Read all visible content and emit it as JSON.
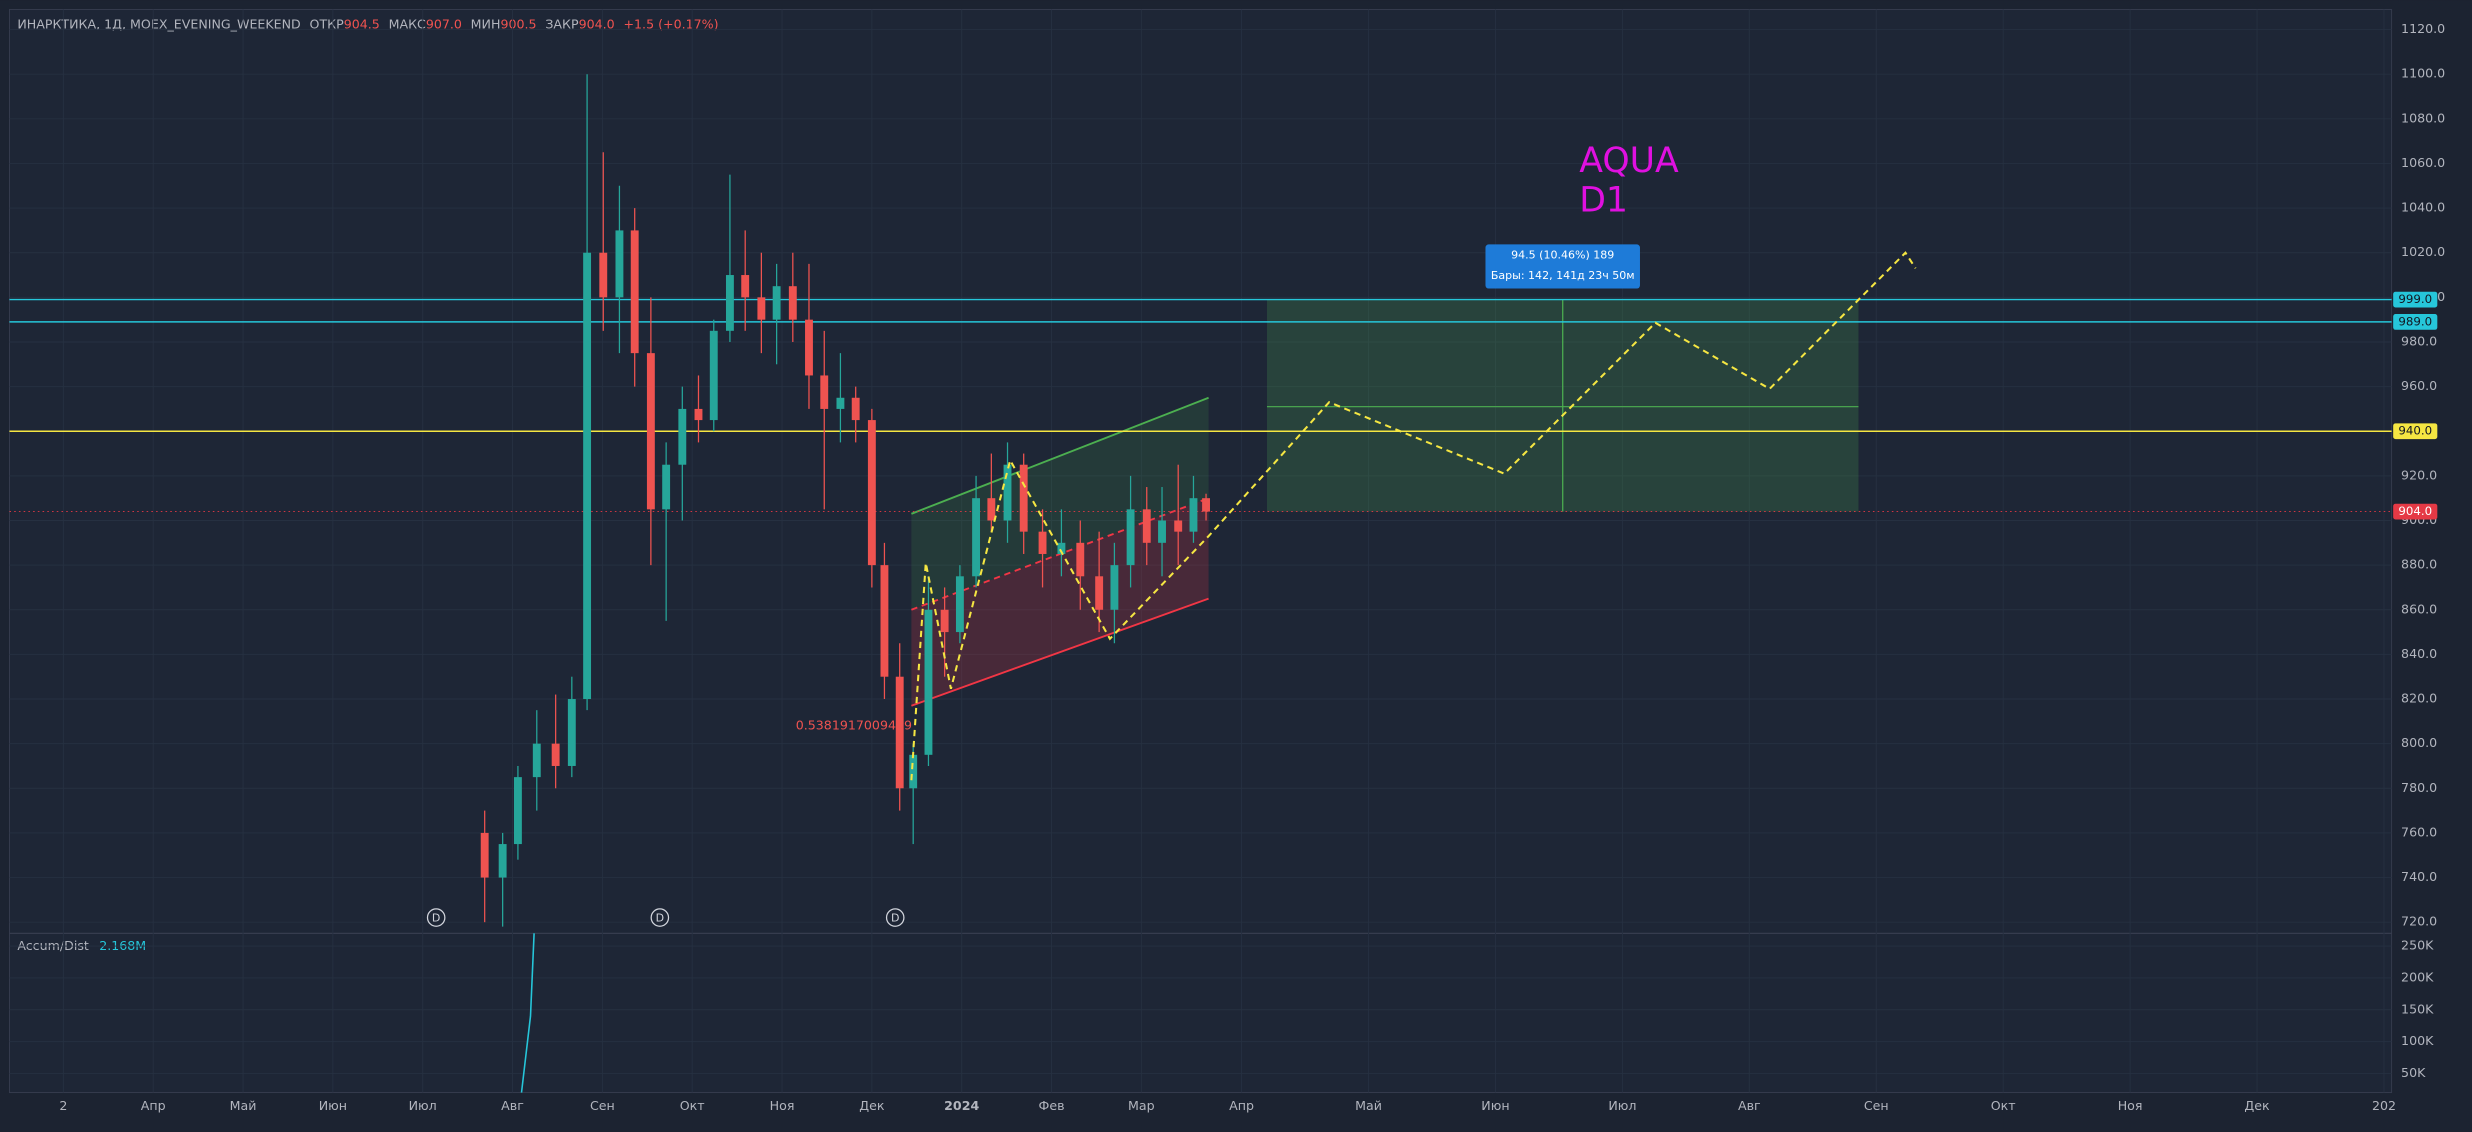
{
  "chart_data": {
    "type": "candlestick",
    "header": {
      "symbol": "ИНАРКТИКА, 1Д, MOEX_EVENING_WEEKEND",
      "open_label": "ОТКР",
      "open": "904.5",
      "high_label": "МАКС",
      "high": "907.0",
      "low_label": "МИН",
      "low": "900.5",
      "close_label": "ЗАКР",
      "close": "904.0",
      "change": "+1.5 (+0.17%)"
    },
    "xlim": [
      -0.6,
      22.06
    ],
    "xticks": [
      {
        "value": 0,
        "label": "2"
      },
      {
        "value": 1,
        "label": "Апр"
      },
      {
        "value": 2,
        "label": "Май"
      },
      {
        "value": 3,
        "label": "Июн"
      },
      {
        "value": 4,
        "label": "Июл"
      },
      {
        "value": 5,
        "label": "Авг"
      },
      {
        "value": 6,
        "label": "Сен"
      },
      {
        "value": 7,
        "label": "Окт"
      },
      {
        "value": 8,
        "label": "Ноя"
      },
      {
        "value": 9,
        "label": "Дек"
      },
      {
        "value": 10,
        "label": "2024"
      },
      {
        "value": 11,
        "label": "Фев"
      },
      {
        "value": 12,
        "label": "Мар"
      },
      {
        "value": 13,
        "label": "Апр"
      },
      {
        "value": 14,
        "label": "Май"
      },
      {
        "value": 15,
        "label": "Июн"
      },
      {
        "value": 16,
        "label": "Июл"
      },
      {
        "value": 17,
        "label": "Авг"
      },
      {
        "value": 18,
        "label": "Сен"
      },
      {
        "value": 19,
        "label": "Окт"
      },
      {
        "value": 20,
        "label": "Ноя"
      },
      {
        "value": 21,
        "label": "Дек"
      },
      {
        "value": 22,
        "label": "202"
      }
    ],
    "ylim": [
      715,
      1129
    ],
    "yticks": [
      {
        "value": 720,
        "label": "720.0"
      },
      {
        "value": 740,
        "label": "740.0"
      },
      {
        "value": 760,
        "label": "760.0"
      },
      {
        "value": 780,
        "label": "780.0"
      },
      {
        "value": 800,
        "label": "800.0"
      },
      {
        "value": 820,
        "label": "820.0"
      },
      {
        "value": 840,
        "label": "840.0"
      },
      {
        "value": 860,
        "label": "860.0"
      },
      {
        "value": 880,
        "label": "880.0"
      },
      {
        "value": 900,
        "label": "900.0"
      },
      {
        "value": 920,
        "label": "920.0"
      },
      {
        "value": 940,
        "label": "940.0"
      },
      {
        "value": 960,
        "label": "960.0"
      },
      {
        "value": 980,
        "label": "980.0"
      },
      {
        "value": 1000,
        "label": "1000.0"
      },
      {
        "value": 1020,
        "label": "1020.0"
      },
      {
        "value": 1040,
        "label": "1040.0"
      },
      {
        "value": 1060,
        "label": "1060.0"
      },
      {
        "value": 1080,
        "label": "1080.0"
      },
      {
        "value": 1100,
        "label": "1100.0"
      },
      {
        "value": 1120,
        "label": "1120.0"
      }
    ],
    "grid": true,
    "candles": {
      "up_color": "#26a69a",
      "down_color": "#ef5350",
      "x": [
        4.69,
        4.89,
        5.06,
        5.27,
        5.48,
        5.66,
        5.83,
        6.01,
        6.19,
        6.36,
        6.54,
        6.71,
        6.89,
        7.07,
        7.24,
        7.42,
        7.59,
        7.77,
        7.94,
        8.12,
        8.3,
        8.47,
        8.65,
        8.82,
        9.0,
        9.14,
        9.31,
        9.46,
        9.63,
        9.81,
        9.98,
        10.16,
        10.33,
        10.51,
        10.69,
        10.9,
        11.11,
        11.32,
        11.53,
        11.7,
        11.88,
        12.06,
        12.23,
        12.41,
        12.58,
        12.72
      ],
      "open": [
        760,
        740,
        755,
        785,
        800,
        790,
        820,
        1020,
        1000,
        1030,
        975,
        905,
        925,
        950,
        945,
        985,
        1010,
        1000,
        990,
        1005,
        990,
        965,
        950,
        955,
        945,
        880,
        830,
        780,
        795,
        860,
        850,
        875,
        910,
        900,
        925,
        895,
        885,
        890,
        875,
        860,
        880,
        905,
        890,
        900,
        895,
        910
      ],
      "high": [
        770,
        760,
        790,
        815,
        822,
        830,
        1100,
        1065,
        1050,
        1040,
        1000,
        935,
        960,
        965,
        990,
        1055,
        1030,
        1020,
        1015,
        1020,
        1015,
        985,
        975,
        960,
        950,
        890,
        845,
        800,
        875,
        870,
        880,
        920,
        930,
        935,
        930,
        905,
        905,
        900,
        895,
        890,
        920,
        915,
        915,
        925,
        920,
        912
      ],
      "low": [
        720,
        718,
        748,
        770,
        780,
        785,
        815,
        985,
        975,
        960,
        880,
        855,
        900,
        935,
        940,
        980,
        985,
        975,
        970,
        980,
        950,
        905,
        935,
        935,
        870,
        820,
        770,
        755,
        790,
        830,
        845,
        870,
        895,
        890,
        885,
        870,
        875,
        860,
        850,
        845,
        870,
        880,
        875,
        880,
        890,
        900
      ],
      "close": [
        740,
        755,
        785,
        800,
        790,
        820,
        1020,
        1000,
        1030,
        975,
        905,
        925,
        950,
        945,
        985,
        1010,
        1000,
        990,
        1005,
        990,
        965,
        950,
        955,
        945,
        880,
        830,
        780,
        795,
        860,
        850,
        875,
        910,
        900,
        925,
        895,
        885,
        890,
        875,
        860,
        880,
        905,
        890,
        900,
        895,
        910,
        904
      ]
    },
    "price_lines": [
      {
        "value": 999,
        "label": "999.0",
        "color": "#26c6da"
      },
      {
        "value": 989,
        "label": "989.0",
        "color": "#26c6da"
      },
      {
        "value": 940,
        "label": "940.0",
        "color": "#f5e642"
      },
      {
        "value": 904,
        "label": "904.0",
        "color": "#e53945"
      }
    ],
    "channel": {
      "x": [
        9.44,
        12.74
      ],
      "upper": [
        903,
        955
      ],
      "middle": [
        860,
        910
      ],
      "lower": [
        817,
        865
      ],
      "upper_color": "#4caf50",
      "lower_color": "#f23645"
    },
    "target": {
      "x": [
        13.2,
        17.86
      ],
      "low": 904,
      "high": 999,
      "mid": 951,
      "measure_x": 15.53,
      "color": "#4caf50"
    },
    "measure_label": {
      "line1": "94.5 (10.46%) 189",
      "line2": "Бары: 142, 141д 23ч 50м"
    },
    "projection": {
      "color": "#f5e642",
      "x": [
        9.44,
        9.6,
        9.88,
        10.54,
        11.65,
        12.74,
        13.69,
        15.07,
        16.26,
        17.16,
        18.23,
        18.31
      ],
      "y": [
        783.6,
        881,
        824.6,
        927,
        847,
        893,
        953,
        921,
        988.6,
        959,
        1020,
        1013
      ]
    },
    "annotations": [
      {
        "text": "AQUA",
        "x": 15.66,
        "y": 1060.6,
        "color": "#e010e0"
      },
      {
        "text": "D1",
        "x": 15.66,
        "y": 1043,
        "color": "#e010e0"
      },
      {
        "text": "0.5381917009469",
        "x": 8.8,
        "y": 808,
        "color": "#ef5350"
      }
    ],
    "dividends": {
      "label": "D",
      "x": [
        4.15,
        6.64,
        9.26
      ]
    },
    "indicator": {
      "name": "Accum/Dist",
      "value_label": "2.168M",
      "color": "#26c6da",
      "ylim": [
        20000,
        270000
      ],
      "yticks": [
        {
          "value": 50000,
          "label": "50K"
        },
        {
          "value": 100000,
          "label": "100K"
        },
        {
          "value": 150000,
          "label": "150K"
        },
        {
          "value": 200000,
          "label": "200K"
        },
        {
          "value": 250000,
          "label": "250K"
        }
      ],
      "x": [
        5.1,
        5.2,
        5.24
      ],
      "values": [
        20000,
        140000,
        270000
      ]
    }
  }
}
